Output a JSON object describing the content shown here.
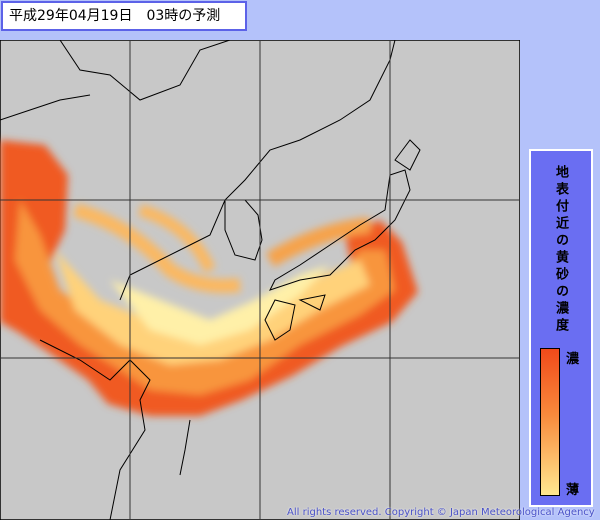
{
  "header": {
    "title": "平成29年04月19日　03時の予測"
  },
  "legend": {
    "title": "地表付近の黄砂の濃度",
    "high_label": "濃",
    "low_label": "薄"
  },
  "footer": {
    "copyright": "All rights reserved. Copyright © Japan Meteorological Agency"
  }
}
